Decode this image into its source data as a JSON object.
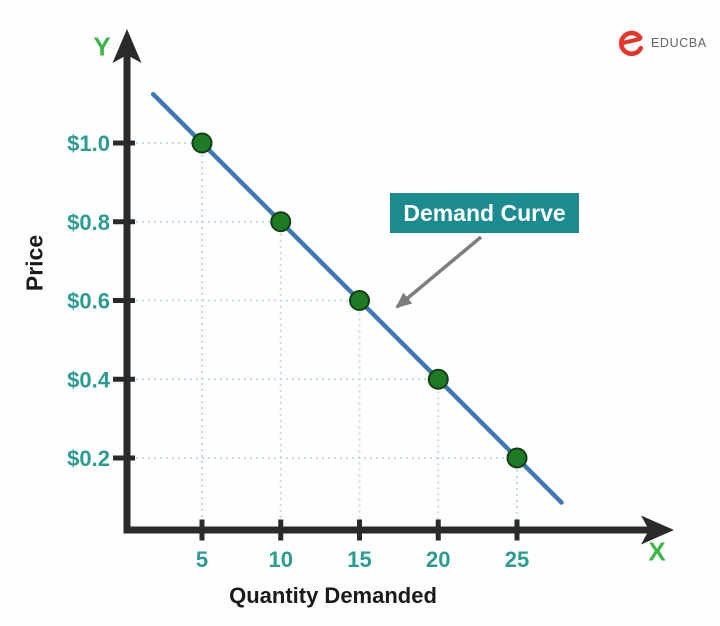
{
  "brand": {
    "name": "EDUCBA"
  },
  "chart_data": {
    "type": "line",
    "title": "",
    "xlabel": "Quantity Demanded",
    "ylabel": "Price",
    "x_axis_letter": "X",
    "y_axis_letter": "Y",
    "x_ticks": [
      5,
      10,
      15,
      20,
      25
    ],
    "y_ticks": [
      {
        "value": 1.0,
        "label": "$1.0"
      },
      {
        "value": 0.8,
        "label": "$0.8"
      },
      {
        "value": 0.6,
        "label": "$0.6"
      },
      {
        "value": 0.4,
        "label": "$0.4"
      },
      {
        "value": 0.2,
        "label": "$0.2"
      }
    ],
    "series": [
      {
        "name": "Demand Curve",
        "points": [
          {
            "quantity": 5,
            "price": 1.0
          },
          {
            "quantity": 10,
            "price": 0.8
          },
          {
            "quantity": 15,
            "price": 0.6
          },
          {
            "quantity": 20,
            "price": 0.4
          },
          {
            "quantity": 25,
            "price": 0.2
          }
        ]
      }
    ],
    "annotation": {
      "label": "Demand Curve",
      "points_to": "demand line"
    },
    "xlim": [
      0,
      30
    ],
    "ylim": [
      0,
      1.2
    ],
    "grid": "dotted guide lines from each data point to both axes",
    "legend_position": "none",
    "colors": {
      "line": "#3d79b8",
      "point_fill": "#1e7b24",
      "point_stroke": "#123f16",
      "axis": "#2b2a2a",
      "tick_label": "#2b9c92",
      "axis_letter": "#3cb54a",
      "gridline": "#c3d9ea",
      "annotation_box": "#1b8b90",
      "annotation_text": "#ffffff",
      "annotation_arrow": "#7d7d7d",
      "brand_icon": "#e5352b",
      "brand_text": "#636466"
    }
  }
}
